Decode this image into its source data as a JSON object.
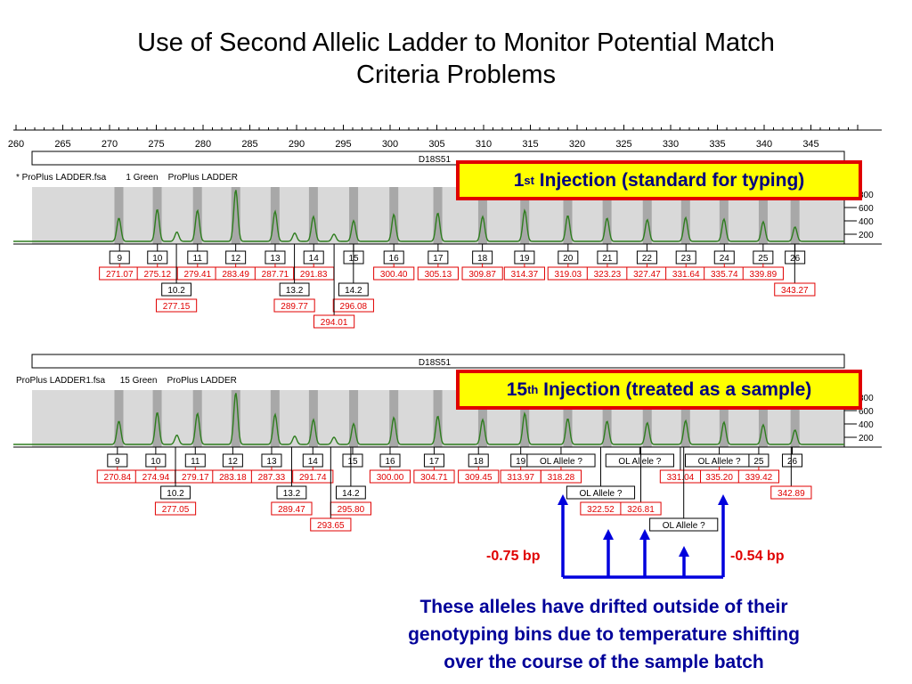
{
  "title": [
    "Use of Second Allelic Ladder to Monitor Potential Match",
    "Criteria Problems"
  ],
  "axis": {
    "ticks": [
      "260",
      "265",
      "270",
      "275",
      "280",
      "285",
      "290",
      "295",
      "300",
      "305",
      "310",
      "315",
      "320",
      "325",
      "330",
      "335",
      "340",
      "345"
    ]
  },
  "panel1": {
    "marker": "D18S51",
    "sample_info": "* ProPlus LADDER.fsa        1 Green    ProPlus LADDER",
    "y_ticks": [
      "800",
      "600",
      "400",
      "200"
    ],
    "callout": {
      "prefix": "1",
      "sup": "st",
      "text": " Injection (standard for typing)"
    },
    "row1": [
      {
        "name": "9",
        "size": "271.07"
      },
      {
        "name": "10",
        "size": "275.12"
      },
      {
        "name": "11",
        "size": "279.41"
      },
      {
        "name": "12",
        "size": "283.49"
      },
      {
        "name": "13",
        "size": "287.71"
      },
      {
        "name": "14",
        "size": "291.83"
      },
      {
        "name": "15",
        "size": ""
      },
      {
        "name": "16",
        "size": "300.40"
      },
      {
        "name": "17",
        "size": "305.13"
      },
      {
        "name": "18",
        "size": "309.87"
      },
      {
        "name": "19",
        "size": "314.37"
      },
      {
        "name": "20",
        "size": "319.03"
      },
      {
        "name": "21",
        "size": "323.23"
      },
      {
        "name": "22",
        "size": "327.47"
      },
      {
        "name": "23",
        "size": "331.64"
      },
      {
        "name": "24",
        "size": "335.74"
      },
      {
        "name": "25",
        "size": "339.89"
      },
      {
        "name": "26",
        "size": ""
      }
    ],
    "row2": [
      {
        "name": "10.2",
        "size": "277.15"
      },
      {
        "name": "13.2",
        "size": "289.77"
      },
      {
        "name": "14.2",
        "size": "296.08"
      },
      {
        "name": "",
        "size": "294.01"
      },
      {
        "name": "",
        "size": "343.27"
      }
    ]
  },
  "panel2": {
    "marker": "D18S51",
    "sample_info": "ProPlus LADDER1.fsa      15 Green    ProPlus LADDER",
    "y_ticks": [
      "800",
      "600",
      "400",
      "200"
    ],
    "callout": {
      "prefix": "15",
      "sup": "th",
      "text": " Injection (treated as a sample)"
    },
    "row1": [
      {
        "name": "9",
        "size": "270.84"
      },
      {
        "name": "10",
        "size": "274.94"
      },
      {
        "name": "11",
        "size": "279.17"
      },
      {
        "name": "12",
        "size": "283.18"
      },
      {
        "name": "13",
        "size": "287.33"
      },
      {
        "name": "14",
        "size": "291.74"
      },
      {
        "name": "15",
        "size": ""
      },
      {
        "name": "16",
        "size": "300.00"
      },
      {
        "name": "17",
        "size": "304.71"
      },
      {
        "name": "18",
        "size": "309.45"
      },
      {
        "name": "19",
        "size": "313.97"
      },
      {
        "name": "OL Allele ?",
        "size": "318.28"
      },
      {
        "name": "OL Allele ?",
        "size": ""
      },
      {
        "name": "OL Allele ?",
        "size": "335.20"
      },
      {
        "name": "25",
        "size": "339.42"
      },
      {
        "name": "26",
        "size": ""
      }
    ],
    "row2": [
      {
        "name": "10.2",
        "size": "277.05"
      },
      {
        "name": "13.2",
        "size": "289.47"
      },
      {
        "name": "14.2",
        "size": "295.80"
      },
      {
        "name": "",
        "size": "293.65"
      },
      {
        "name": "OL Allele ?",
        "size": "322.52"
      },
      {
        "name": "",
        "size": "326.81"
      },
      {
        "name": "",
        "size": "331.04"
      },
      {
        "name": "OL Allele ?",
        "size": ""
      },
      {
        "name": "",
        "size": "342.89"
      }
    ]
  },
  "annotations": {
    "left": "-0.75 bp",
    "right": "-0.54 bp"
  },
  "caption": [
    "These alleles have drifted outside of their",
    "genotyping bins due to temperature shifting",
    "over the course of the sample batch"
  ],
  "colors": {
    "trace": "#2e7d1e",
    "size_box": "#e00000",
    "bin": "#a8a8a8",
    "plot_bg": "#d9d9d9",
    "arrow": "#0000dd",
    "callout_bg": "#ffff00"
  }
}
